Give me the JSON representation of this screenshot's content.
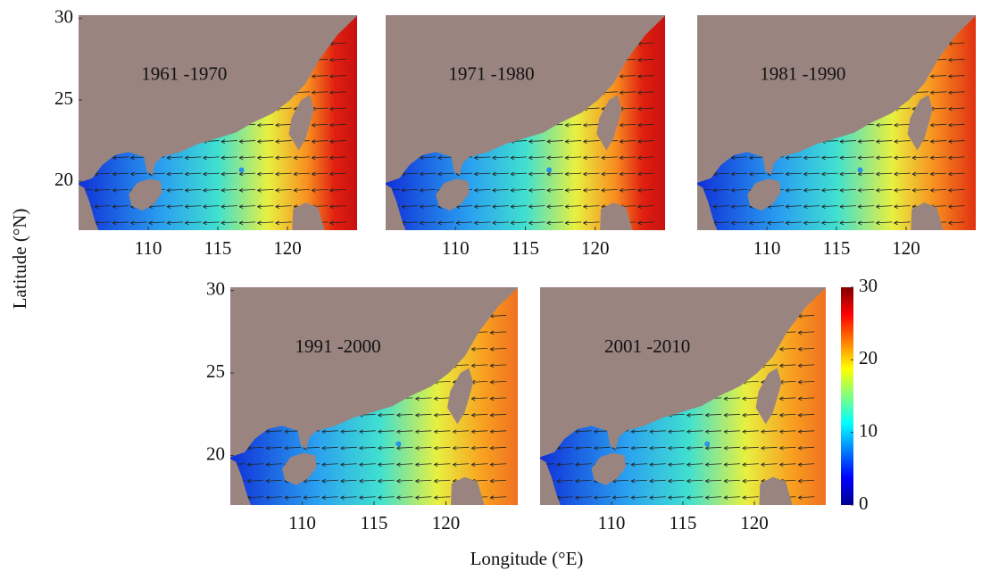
{
  "figure": {
    "ylabel": "Latitude (°N)",
    "xlabel": "Longitude (°E)",
    "panels": [
      {
        "label": "1961 -1970",
        "xlim": [
          105,
          125
        ],
        "ylim": [
          17,
          30.2
        ],
        "xticks": [
          110,
          115,
          120
        ],
        "yticks": [
          20,
          25,
          30
        ]
      },
      {
        "label": "1971 -1980",
        "xlim": [
          105,
          125
        ],
        "ylim": [
          17,
          30.2
        ],
        "xticks": [
          110,
          115,
          120
        ]
      },
      {
        "label": "1981 -1990",
        "xlim": [
          105,
          125
        ],
        "ylim": [
          17,
          30.2
        ],
        "xticks": [
          110,
          115,
          120
        ]
      },
      {
        "label": "1991 -2000",
        "xlim": [
          105,
          125
        ],
        "ylim": [
          17,
          30.2
        ],
        "xticks": [
          110,
          115,
          120
        ],
        "yticks": [
          20,
          25,
          30
        ]
      },
      {
        "label": "2001 -2010",
        "xlim": [
          105,
          125
        ],
        "ylim": [
          17,
          30.2
        ],
        "xticks": [
          110,
          115,
          120
        ]
      }
    ],
    "colorbar": {
      "lim": [
        0,
        30
      ],
      "ticks": [
        0,
        10,
        20,
        30
      ]
    }
  }
}
